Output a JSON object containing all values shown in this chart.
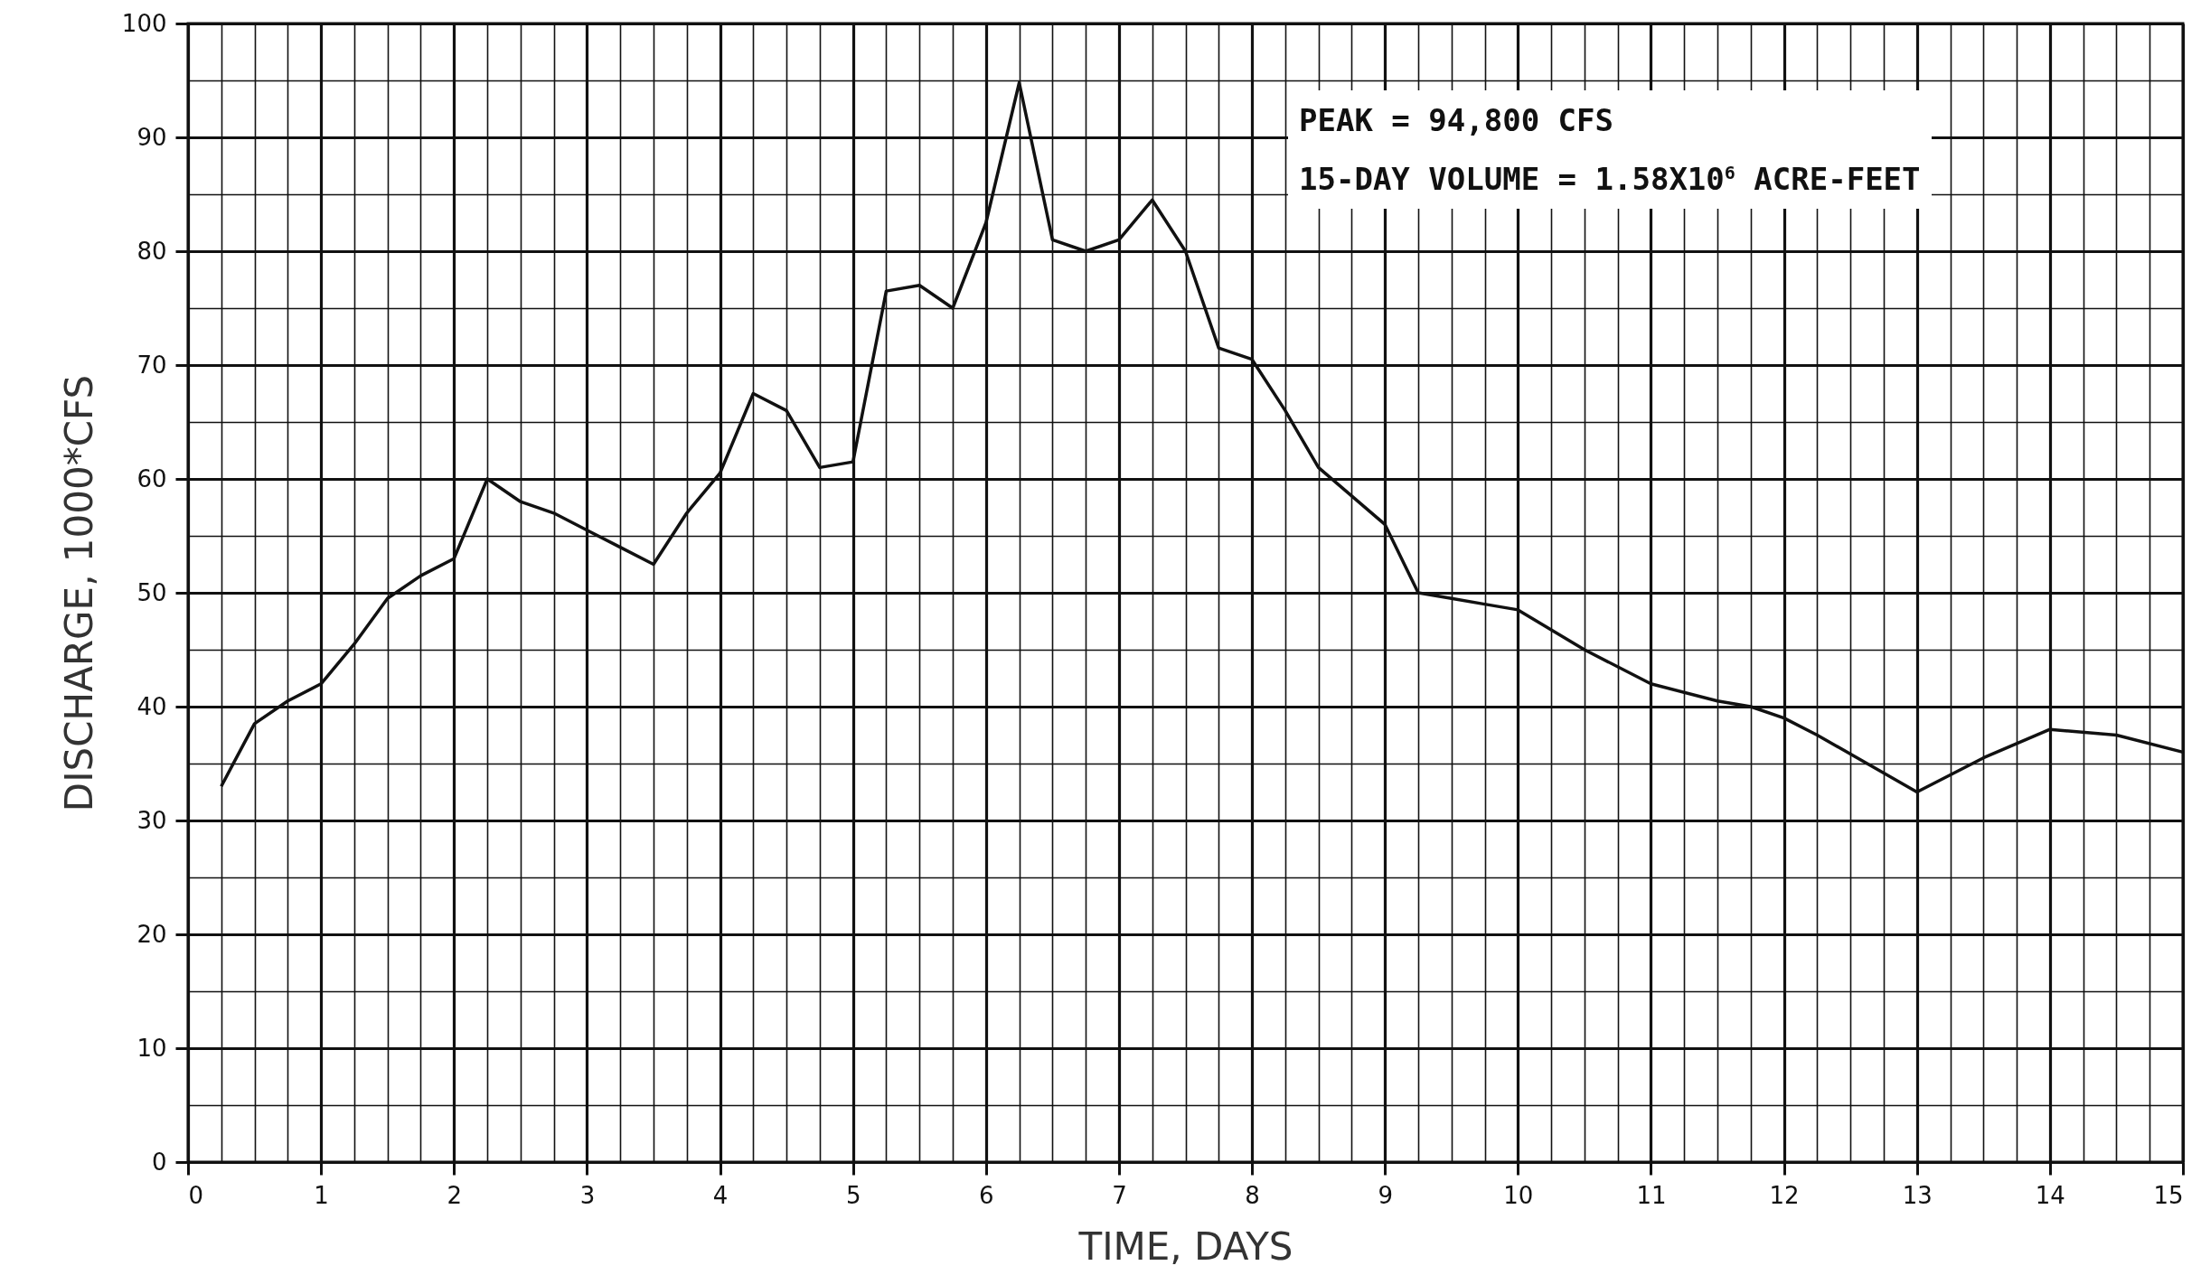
{
  "chart_data": {
    "type": "line",
    "xlabel": "TIME, DAYS",
    "ylabel": "DISCHARGE, 1000*CFS",
    "annotations": [
      "PEAK = 94,800 CFS",
      "15-DAY VOLUME = 1.58X10$^{6}$ ACRE-FEET"
    ],
    "x": [
      0.25,
      0.5,
      0.75,
      1,
      1.25,
      1.5,
      1.75,
      2,
      2.25,
      2.5,
      2.75,
      3,
      3.25,
      3.5,
      3.75,
      4,
      4.25,
      4.5,
      4.75,
      5,
      5.25,
      5.5,
      5.75,
      6,
      6.25,
      6.5,
      6.75,
      7,
      7.25,
      7.5,
      7.75,
      8,
      8.25,
      8.5,
      8.75,
      9,
      9.25,
      9.5,
      9.75,
      10,
      10.5,
      11,
      11.5,
      11.75,
      12,
      12.25,
      13,
      13.5,
      14,
      14.5,
      15
    ],
    "series": [
      {
        "color": "#111111",
        "values": [
          33,
          38.5,
          40.5,
          42,
          45.5,
          49.5,
          51.5,
          53,
          60,
          58,
          57,
          55.5,
          54,
          52.5,
          57,
          60.5,
          67.5,
          66,
          61,
          61.5,
          76.5,
          77,
          75,
          82.5,
          94.8,
          81,
          80,
          81,
          84.5,
          80,
          71.5,
          70.5,
          66,
          61,
          58.5,
          56,
          50,
          49.5,
          49,
          48.5,
          45,
          42,
          40.5,
          40,
          39,
          37.5,
          32.5,
          35.5,
          38,
          37.5,
          36
        ]
      }
    ],
    "xlim": [
      0,
      15
    ],
    "ylim": [
      0,
      100
    ],
    "xticks": [
      0,
      {
        "value": 0.25,
        "label": null
      },
      {
        "value": 0.5,
        "label": null
      },
      {
        "value": 0.75,
        "label": null
      },
      1,
      {
        "value": 1.25,
        "label": null
      },
      {
        "value": 1.5,
        "label": null
      },
      {
        "value": 1.75,
        "label": null
      },
      2,
      {
        "value": 2.25,
        "label": null
      },
      {
        "value": 2.5,
        "label": null
      },
      {
        "value": 2.75,
        "label": null
      },
      3,
      {
        "value": 3.25,
        "label": null
      },
      {
        "value": 3.5,
        "label": null
      },
      {
        "value": 3.75,
        "label": null
      },
      4,
      {
        "value": 4.25,
        "label": null
      },
      {
        "value": 4.5,
        "label": null
      },
      {
        "value": 4.75,
        "label": null
      },
      5,
      {
        "value": 5.25,
        "label": null
      },
      {
        "value": 5.5,
        "label": null
      },
      {
        "value": 5.75,
        "label": null
      },
      6,
      {
        "value": 6.25,
        "label": null
      },
      {
        "value": 6.5,
        "label": null
      },
      {
        "value": 6.75,
        "label": null
      },
      7,
      {
        "value": 7.25,
        "label": null
      },
      {
        "value": 7.5,
        "label": null
      },
      {
        "value": 7.75,
        "label": null
      },
      8,
      {
        "value": 8.25,
        "label": null
      },
      {
        "value": 8.5,
        "label": null
      },
      {
        "value": 8.75,
        "label": null
      },
      9,
      {
        "value": 9.25,
        "label": null
      },
      {
        "value": 9.5,
        "label": null
      },
      {
        "value": 9.75,
        "label": null
      },
      10,
      {
        "value": 10.25,
        "label": null
      },
      {
        "value": 10.5,
        "label": null
      },
      {
        "value": 10.75,
        "label": null
      },
      11,
      {
        "value": 11.25,
        "label": null
      },
      {
        "value": 11.5,
        "label": null
      },
      {
        "value": 11.75,
        "label": null
      },
      12,
      {
        "value": 12.25,
        "label": null
      },
      {
        "value": 12.5,
        "label": null
      },
      {
        "value": 12.75,
        "label": null
      },
      13,
      {
        "value": 13.25,
        "label": null
      },
      {
        "value": 13.5,
        "label": null
      },
      {
        "value": 13.75,
        "label": null
      },
      14,
      {
        "value": 14.25,
        "label": null
      },
      {
        "value": 14.5,
        "label": null
      },
      {
        "value": 14.75,
        "label": null
      },
      15
    ],
    "yticks": [
      0,
      {
        "value": 5,
        "label": null
      },
      10,
      {
        "value": 15,
        "label": null
      },
      20,
      {
        "value": 25,
        "label": null
      },
      30,
      {
        "value": 35,
        "label": null
      },
      40,
      {
        "value": 45,
        "label": null
      },
      50,
      {
        "value": 55,
        "label": null
      },
      60,
      {
        "value": 65,
        "label": null
      },
      70,
      {
        "value": 75,
        "label": null
      },
      80,
      {
        "value": 85,
        "label": null
      },
      90,
      {
        "value": 95,
        "label": null
      },
      100
    ],
    "grid": true,
    "line_style": "solid",
    "marker": "none"
  }
}
